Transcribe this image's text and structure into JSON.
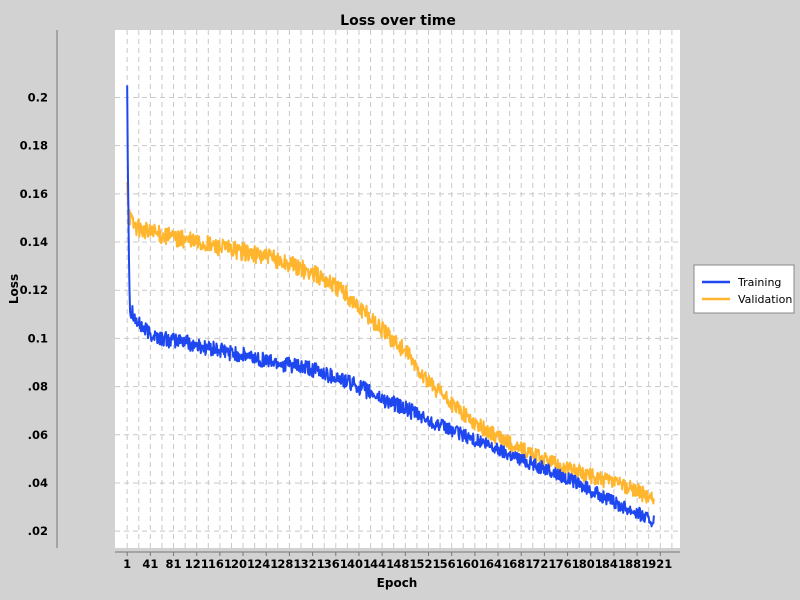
{
  "chart_data": {
    "type": "line",
    "title": "Loss over time",
    "xlabel": "Epoch",
    "ylabel": "Loss",
    "xlim": [
      -20,
      955
    ],
    "ylim": [
      0.013,
      0.228
    ],
    "x_ticks": [
      1,
      41,
      81,
      121,
      161,
      201,
      241,
      281,
      321,
      361,
      401,
      441,
      481,
      521,
      561,
      601,
      641,
      681,
      721,
      761,
      801,
      841,
      881,
      921
    ],
    "y_ticks": [
      0.02,
      0.04,
      0.06,
      0.08,
      0.1,
      0.12,
      0.14,
      0.16,
      0.18,
      0.2
    ],
    "y_tick_labels": [
      ".02",
      ".04",
      ".06",
      ".08",
      "0.1",
      "0.12",
      "0.14",
      "0.16",
      "0.18",
      "0.2"
    ],
    "grid": true,
    "legend_position": "right",
    "series": [
      {
        "name": "Training",
        "color": "#1f47f0",
        "x": [
          1,
          2,
          4,
          6,
          8,
          10,
          15,
          20,
          30,
          40,
          60,
          80,
          100,
          120,
          140,
          160,
          180,
          200,
          240,
          280,
          320,
          360,
          380,
          400,
          440,
          480,
          520,
          560,
          600,
          640,
          680,
          720,
          760,
          800,
          840,
          880,
          900,
          910
        ],
        "y": [
          0.205,
          0.175,
          0.135,
          0.112,
          0.11,
          0.112,
          0.108,
          0.106,
          0.104,
          0.102,
          0.1,
          0.099,
          0.099,
          0.097,
          0.096,
          0.095,
          0.094,
          0.093,
          0.091,
          0.089,
          0.087,
          0.084,
          0.082,
          0.08,
          0.075,
          0.071,
          0.066,
          0.062,
          0.058,
          0.054,
          0.05,
          0.046,
          0.042,
          0.037,
          0.032,
          0.028,
          0.025,
          0.024
        ]
      },
      {
        "name": "Validation",
        "color": "#ffb62e",
        "x": [
          1,
          2,
          4,
          6,
          8,
          10,
          15,
          20,
          30,
          40,
          60,
          80,
          100,
          120,
          140,
          160,
          180,
          200,
          240,
          280,
          320,
          340,
          360,
          380,
          400,
          440,
          480,
          500,
          520,
          560,
          600,
          640,
          680,
          720,
          760,
          800,
          840,
          880,
          900,
          910
        ],
        "y": [
          0.165,
          0.158,
          0.154,
          0.151,
          0.149,
          0.148,
          0.147,
          0.146,
          0.145,
          0.144,
          0.143,
          0.142,
          0.141,
          0.14,
          0.139,
          0.138,
          0.137,
          0.136,
          0.134,
          0.131,
          0.127,
          0.125,
          0.122,
          0.118,
          0.113,
          0.104,
          0.095,
          0.088,
          0.082,
          0.073,
          0.065,
          0.059,
          0.054,
          0.05,
          0.046,
          0.043,
          0.04,
          0.037,
          0.034,
          0.033
        ]
      }
    ]
  }
}
